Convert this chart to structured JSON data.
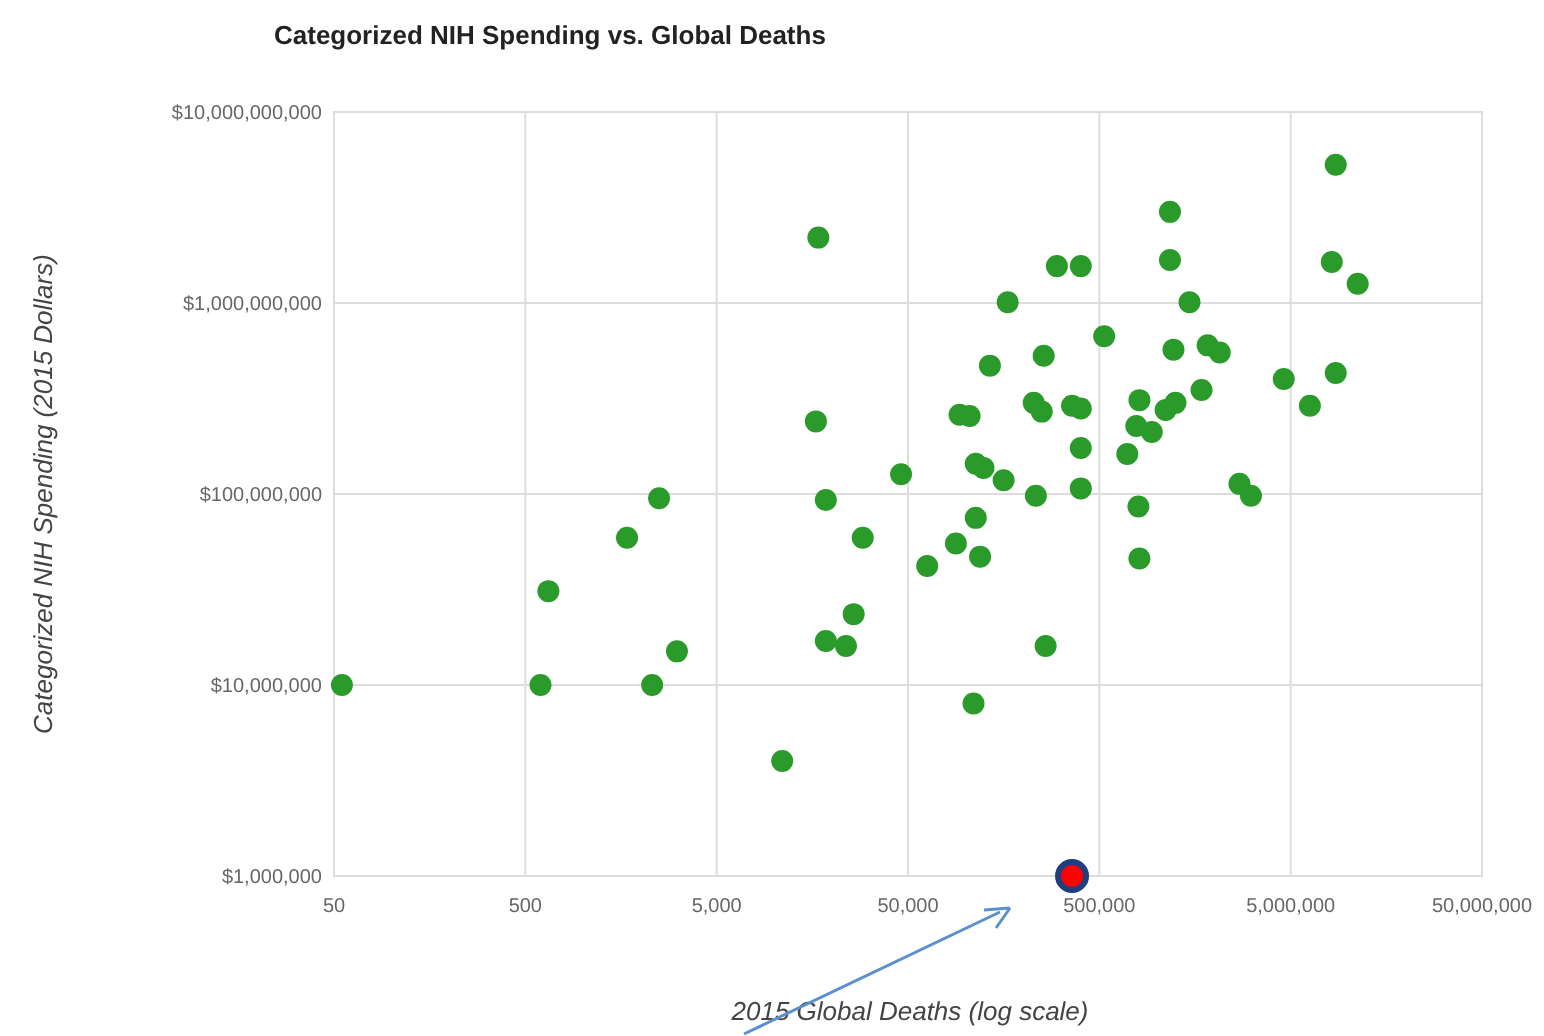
{
  "chart_data": {
    "type": "scatter",
    "title": "Categorized NIH Spending vs. Global Deaths",
    "xlabel": "2015 Global Deaths (log scale)",
    "ylabel": "Categorized NIH Spending (2015 Dollars)",
    "log": "xy",
    "grid": true,
    "marker": "circle",
    "xlim": [
      50,
      50000000
    ],
    "ylim": [
      1000000,
      10000000000
    ],
    "xticks": [
      {
        "value": 50,
        "label": "50"
      },
      {
        "value": 500,
        "label": "500"
      },
      {
        "value": 5000,
        "label": "5,000"
      },
      {
        "value": 50000,
        "label": "50,000"
      },
      {
        "value": 500000,
        "label": "500,000"
      },
      {
        "value": 5000000,
        "label": "5,000,000"
      },
      {
        "value": 50000000,
        "label": "50,000,000"
      }
    ],
    "yticks": [
      {
        "value": 1000000,
        "label": "$1,000,000"
      },
      {
        "value": 10000000,
        "label": "$10,000,000"
      },
      {
        "value": 100000000,
        "label": "$100,000,000"
      },
      {
        "value": 1000000000,
        "label": "$1,000,000,000"
      },
      {
        "value": 10000000000,
        "label": "$10,000,000,000"
      }
    ],
    "series": [
      {
        "color": "#2a9a2a",
        "x": [
          17000,
          16500,
          46000,
          2500,
          18600,
          1700,
          29000,
          93000,
          8600000,
          1170000,
          8200000,
          11200000,
          1170000,
          300000,
          400000,
          166000,
          1480000,
          530000,
          1220000,
          1840000,
          2130000,
          134000,
          256000,
          4600000,
          8600000,
          6300000,
          227000,
          250000,
          360000,
          400000,
          810000,
          1110000,
          1250000,
          1710000,
          105000,
          780000,
          940000,
          400000,
          700000,
          113000,
          124000,
          158000,
          233000,
          400000,
          2700000,
          3100000,
          800000,
          113000,
          89000,
          55,
          600,
          2300,
          660,
          3100,
          11000,
          18600,
          23700,
          26000,
          63000,
          119000,
          262000,
          110000,
          810000
        ],
        "values": [
          2200000000,
          240000000,
          127000000,
          95000000,
          93000000,
          59000000,
          59000000,
          260000000,
          5300000000,
          3000000000,
          1640000000,
          1260000000,
          1680000000,
          1560000000,
          1560000000,
          1010000000,
          1010000000,
          670000000,
          570000000,
          600000000,
          550000000,
          470000000,
          530000000,
          400000000,
          430000000,
          290000000,
          300000000,
          270000000,
          290000000,
          280000000,
          310000000,
          275000000,
          300000000,
          350000000,
          256000000,
          227000000,
          211000000,
          174000000,
          162000000,
          144000000,
          137000000,
          118000000,
          98000000,
          107000000,
          113000000,
          98000000,
          86000000,
          75000000,
          55000000,
          10000000,
          10000000,
          10000000,
          31000000,
          15000000,
          4000000,
          17000000,
          16000000,
          23500000,
          42000000,
          47000000,
          16000000,
          8000000,
          46000000
        ]
      },
      {
        "color": "#ff0000",
        "x": [
          360000
        ],
        "values": [
          1000000
        ]
      }
    ]
  }
}
